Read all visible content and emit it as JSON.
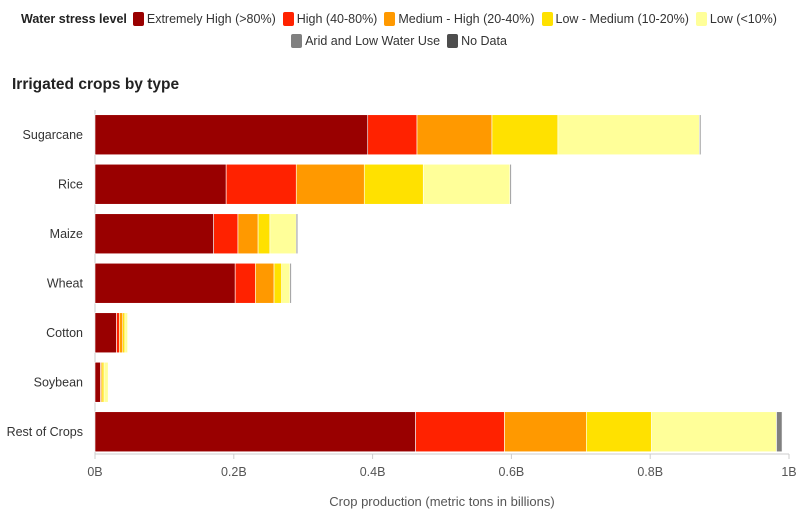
{
  "legend": {
    "title": "Water stress level"
  },
  "subtitle": "Irrigated crops by type",
  "chart_data": {
    "type": "bar",
    "orientation": "horizontal",
    "stacked": true,
    "categories": [
      "Sugarcane",
      "Rice",
      "Maize",
      "Wheat",
      "Cotton",
      "Soybean",
      "Rest of Crops"
    ],
    "series": [
      {
        "name": "Extremely High (>80%)",
        "color": "#990000",
        "values": [
          0.393,
          0.189,
          0.171,
          0.202,
          0.031,
          0.008,
          0.462
        ]
      },
      {
        "name": "High (40-80%)",
        "color": "#ff2200",
        "values": [
          0.071,
          0.101,
          0.035,
          0.029,
          0.004,
          0.0,
          0.128
        ]
      },
      {
        "name": "Medium - High (20-40%)",
        "color": "#ff9900",
        "values": [
          0.108,
          0.098,
          0.029,
          0.027,
          0.005,
          0.002,
          0.118
        ]
      },
      {
        "name": "Low - Medium (10-20%)",
        "color": "#ffe100",
        "values": [
          0.095,
          0.085,
          0.017,
          0.011,
          0.003,
          0.003,
          0.094
        ]
      },
      {
        "name": "Low (<10%)",
        "color": "#ffff99",
        "values": [
          0.204,
          0.125,
          0.038,
          0.012,
          0.004,
          0.006,
          0.18
        ]
      },
      {
        "name": "Arid and Low Water Use",
        "color": "#808080",
        "values": [
          0.002,
          0.002,
          0.002,
          0.002,
          0.0,
          0.0,
          0.008
        ]
      },
      {
        "name": "No Data",
        "color": "#4d4d4d",
        "values": [
          0.0,
          0.0,
          0.0,
          0.0,
          0.0,
          0.0,
          0.0
        ]
      }
    ],
    "xlabel": "Crop production (metric tons in billions)",
    "xlim": [
      0,
      1
    ],
    "xticks": [
      0,
      0.2,
      0.4,
      0.6,
      0.8,
      1
    ],
    "xtick_labels": [
      "0B",
      "0.2B",
      "0.4B",
      "0.6B",
      "0.8B",
      "1B"
    ],
    "grid": false,
    "legend_position": "top"
  }
}
